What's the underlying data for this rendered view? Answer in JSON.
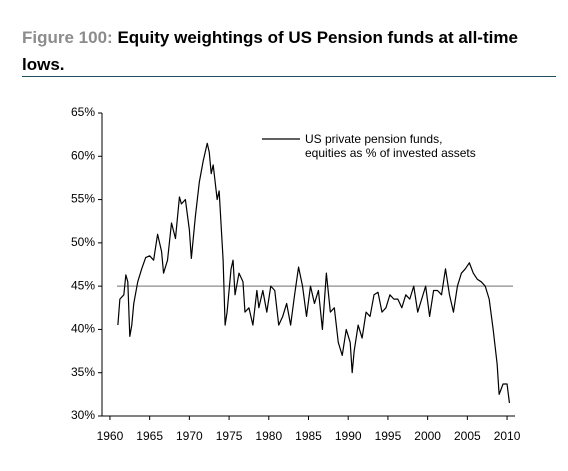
{
  "chart_data": {
    "type": "line",
    "title_prefix": "Figure 100:",
    "title": "Equity weightings of US Pension funds at all-time lows.",
    "xlim": [
      1959,
      2011
    ],
    "xticks": [
      1960,
      1965,
      1970,
      1975,
      1980,
      1985,
      1990,
      1995,
      2000,
      2005,
      2010
    ],
    "ylim": [
      30,
      65
    ],
    "yticks": [
      {
        "value": 30,
        "label": "30%"
      },
      {
        "value": 35,
        "label": "35%"
      },
      {
        "value": 40,
        "label": "40%"
      },
      {
        "value": 45,
        "label": "45%"
      },
      {
        "value": 50,
        "label": "50%"
      },
      {
        "value": 55,
        "label": "55%"
      },
      {
        "value": 60,
        "label": "60%"
      },
      {
        "value": 65,
        "label": "65%"
      }
    ],
    "reference_line": 45,
    "reference_color": "#8c8c8c",
    "legend": "upper-center",
    "series": [
      {
        "name": "US private pension funds, equities as % of invested assets",
        "color": "#000000",
        "x": [
          1961.0,
          1961.25,
          1961.75,
          1962.0,
          1962.25,
          1962.5,
          1962.75,
          1963.0,
          1963.5,
          1964.0,
          1964.5,
          1965.0,
          1965.5,
          1966.0,
          1966.5,
          1966.75,
          1967.25,
          1967.75,
          1968.25,
          1968.75,
          1969.0,
          1969.5,
          1970.0,
          1970.25,
          1970.75,
          1971.25,
          1971.75,
          1972.25,
          1972.5,
          1972.75,
          1973.0,
          1973.5,
          1973.75,
          1974.25,
          1974.5,
          1974.75,
          1975.25,
          1975.5,
          1975.75,
          1976.25,
          1976.75,
          1977.0,
          1977.5,
          1978.0,
          1978.5,
          1978.75,
          1979.25,
          1979.75,
          1980.25,
          1980.75,
          1981.25,
          1981.75,
          1982.25,
          1982.75,
          1983.25,
          1983.75,
          1984.25,
          1984.75,
          1985.25,
          1985.75,
          1986.25,
          1986.75,
          1987.25,
          1987.75,
          1988.25,
          1988.75,
          1989.25,
          1989.75,
          1990.25,
          1990.5,
          1990.75,
          1991.25,
          1991.75,
          1992.25,
          1992.75,
          1993.25,
          1993.75,
          1994.25,
          1994.75,
          1995.25,
          1995.75,
          1996.25,
          1996.75,
          1997.25,
          1997.75,
          1998.25,
          1998.75,
          1999.25,
          1999.75,
          2000.25,
          2000.75,
          2001.25,
          2001.75,
          2002.25,
          2002.75,
          2003.25,
          2003.75,
          2004.25,
          2004.75,
          2005.25,
          2005.75,
          2006.25,
          2006.75,
          2007.25,
          2007.75,
          2008.25,
          2008.75,
          2009.0,
          2009.5,
          2010.0,
          2010.3
        ],
        "values": [
          40.5,
          43.5,
          44,
          46.3,
          45.5,
          39.2,
          40.5,
          43,
          45.5,
          47,
          48.3,
          48.5,
          48,
          51,
          49,
          46.5,
          48,
          52.3,
          50.5,
          55.3,
          54.5,
          55,
          51.5,
          48.2,
          53,
          57,
          59.5,
          61.5,
          60.5,
          58,
          59,
          55,
          56,
          48,
          40.5,
          42,
          47,
          48,
          44,
          46.5,
          45.5,
          42,
          42.5,
          40.5,
          44.5,
          42.5,
          44.5,
          42,
          45,
          44.5,
          40.5,
          41.5,
          43,
          40.5,
          44,
          47.2,
          45,
          41.5,
          45,
          43,
          44.5,
          40,
          46.5,
          42,
          42.5,
          38.5,
          37,
          40,
          38.5,
          35,
          37.5,
          40.5,
          39,
          42,
          41.5,
          44,
          44.3,
          42,
          42.5,
          44,
          43.5,
          43.5,
          42.5,
          44,
          43.5,
          45,
          42,
          43.5,
          45,
          41.5,
          44.5,
          44.5,
          44,
          47,
          44,
          42,
          45,
          46.5,
          47,
          47.7,
          46.5,
          45.8,
          45.5,
          45,
          43.5,
          40,
          36,
          32.5,
          33.7,
          33.7,
          31.5
        ]
      }
    ]
  }
}
